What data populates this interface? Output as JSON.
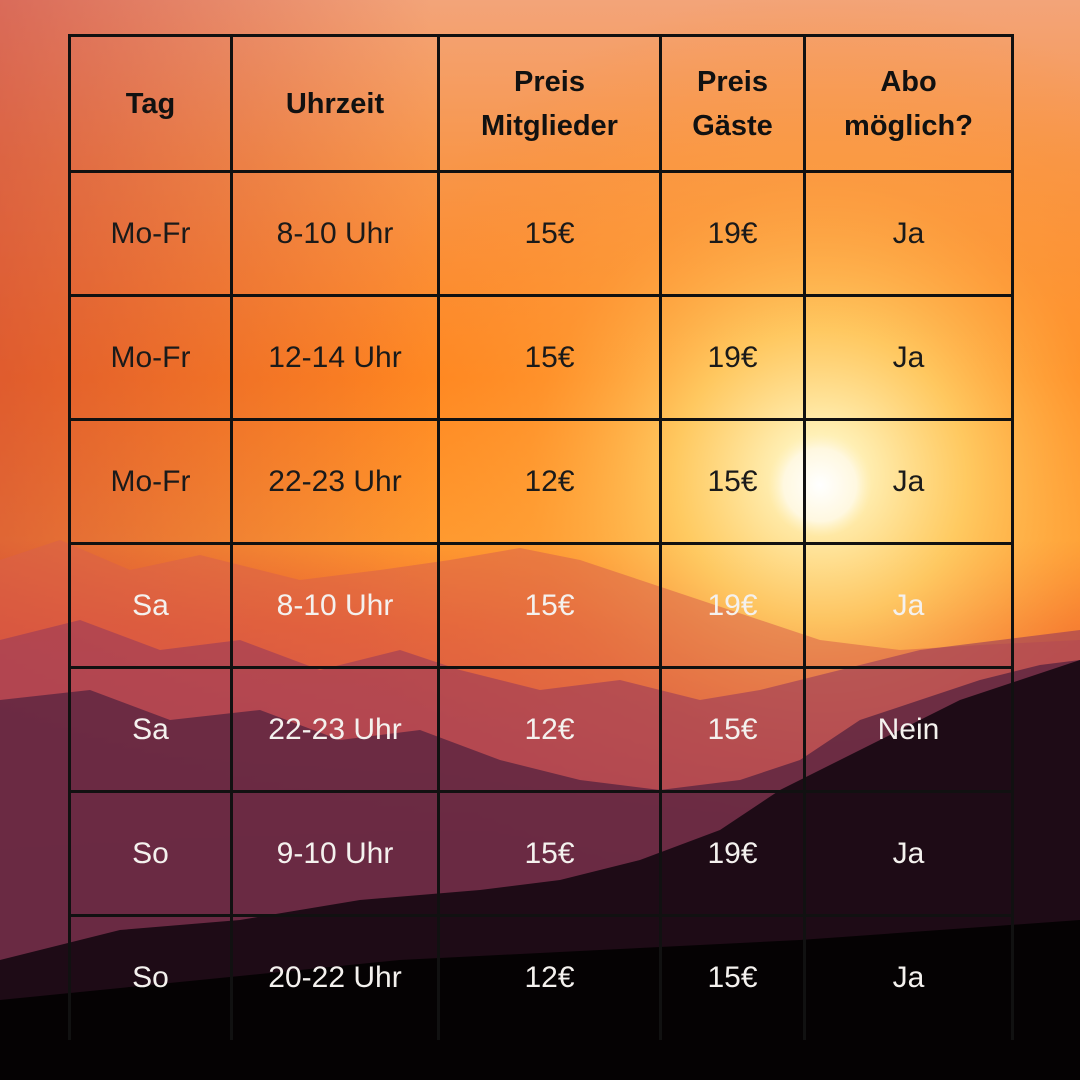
{
  "table": {
    "headers": [
      {
        "line1": "Tag",
        "line2": ""
      },
      {
        "line1": "Uhrzeit",
        "line2": ""
      },
      {
        "line1": "Preis",
        "line2": "Mitglieder"
      },
      {
        "line1": "Preis",
        "line2": "Gäste"
      },
      {
        "line1": "Abo",
        "line2": "möglich?"
      }
    ],
    "rows": [
      [
        "Mo-Fr",
        "8-10 Uhr",
        "15€",
        "19€",
        "Ja"
      ],
      [
        "Mo-Fr",
        "12-14 Uhr",
        "15€",
        "19€",
        "Ja"
      ],
      [
        "Mo-Fr",
        "22-23 Uhr",
        "12€",
        "15€",
        "Ja"
      ],
      [
        "Sa",
        "8-10 Uhr",
        "15€",
        "19€",
        "Ja"
      ],
      [
        "Sa",
        "22-23 Uhr",
        "12€",
        "15€",
        "Nein"
      ],
      [
        "So",
        "9-10 Uhr",
        "15€",
        "19€",
        "Ja"
      ],
      [
        "So",
        "20-22 Uhr",
        "12€",
        "15€",
        "Ja"
      ]
    ]
  },
  "colors": {
    "sky_top": "#f29a6a",
    "sky_orange": "#ff8a1f",
    "sun_glow": "#fff3c2",
    "mountain_far": "#b8506a",
    "mountain_mid": "#6a2a4a",
    "mountain_near": "#1a0a14",
    "border": "#111111"
  },
  "background": {
    "scene": "sunset-over-mountains"
  }
}
